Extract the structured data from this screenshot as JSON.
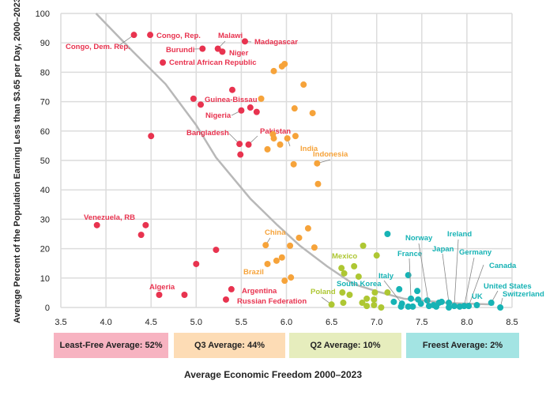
{
  "chart_data": {
    "type": "scatter",
    "title": "",
    "xlabel": "Average Economic Freedom 2000–2023",
    "ylabel": "Average Percent of the Population Earning Less than $3.65 per Day, 2000–2023",
    "xlim": [
      3.5,
      8.5
    ],
    "ylim": [
      0,
      100
    ],
    "xticks": [
      "3.5",
      "4.0",
      "4.5",
      "5.0",
      "5.5",
      "6.0",
      "6.5",
      "7.0",
      "7.5",
      "8.0",
      "8.5"
    ],
    "yticks": [
      "0",
      "10",
      "20",
      "30",
      "40",
      "50",
      "60",
      "70",
      "80",
      "90",
      "100"
    ],
    "grid": true,
    "colors": {
      "least_free": "#e8334f",
      "q3": "#f6a33a",
      "q2": "#aec733",
      "freest": "#17b3b5",
      "trend": "#b8b8b8"
    },
    "trend_line": [
      [
        3.89,
        100
      ],
      [
        4.3,
        87
      ],
      [
        4.66,
        76
      ],
      [
        5.0,
        62
      ],
      [
        5.22,
        51
      ],
      [
        5.6,
        37
      ],
      [
        5.9,
        28
      ],
      [
        6.15,
        21
      ],
      [
        6.45,
        14
      ],
      [
        6.74,
        8
      ],
      [
        7.0,
        5.5
      ],
      [
        7.3,
        3
      ],
      [
        7.8,
        1.5
      ],
      [
        8.3,
        1
      ]
    ],
    "series": [
      {
        "name": "Least-Free",
        "color_key": "least_free",
        "points": [
          {
            "x": 4.31,
            "y": 92.7,
            "label": "Congo, Dem. Rep."
          },
          {
            "x": 4.49,
            "y": 92.7,
            "label": "Congo, Rep."
          },
          {
            "x": 5.07,
            "y": 88,
            "label": "Burundi"
          },
          {
            "x": 5.24,
            "y": 88,
            "label": "Malawi"
          },
          {
            "x": 5.29,
            "y": 87,
            "label": "Niger"
          },
          {
            "x": 5.54,
            "y": 90.5,
            "label": "Madagascar"
          },
          {
            "x": 4.63,
            "y": 83.3,
            "label": "Central African Republic"
          },
          {
            "x": 5.4,
            "y": 74
          },
          {
            "x": 4.97,
            "y": 71,
            "label": "Guinea-Bissau"
          },
          {
            "x": 5.05,
            "y": 69
          },
          {
            "x": 5.5,
            "y": 67,
            "label": "Nigeria"
          },
          {
            "x": 5.6,
            "y": 68
          },
          {
            "x": 5.67,
            "y": 66.5
          },
          {
            "x": 4.5,
            "y": 58.3
          },
          {
            "x": 5.48,
            "y": 55.6,
            "label": "Bangladesh"
          },
          {
            "x": 5.58,
            "y": 55.4,
            "label": "Pakistan"
          },
          {
            "x": 5.49,
            "y": 52
          },
          {
            "x": 3.9,
            "y": 28,
            "label": "Venezuela, RB"
          },
          {
            "x": 4.44,
            "y": 28
          },
          {
            "x": 4.39,
            "y": 24.7
          },
          {
            "x": 5.22,
            "y": 19.6
          },
          {
            "x": 5.0,
            "y": 14.8
          },
          {
            "x": 4.59,
            "y": 4.3,
            "label": "Algeria"
          },
          {
            "x": 4.87,
            "y": 4.3
          },
          {
            "x": 5.39,
            "y": 6.2,
            "label": "Argentina"
          },
          {
            "x": 5.33,
            "y": 2.7,
            "label": "Russian Federation"
          }
        ]
      },
      {
        "name": "Q3",
        "color_key": "q3",
        "points": [
          {
            "x": 5.86,
            "y": 80.4
          },
          {
            "x": 5.95,
            "y": 82
          },
          {
            "x": 5.98,
            "y": 82.8
          },
          {
            "x": 6.19,
            "y": 75.8
          },
          {
            "x": 5.72,
            "y": 71
          },
          {
            "x": 6.09,
            "y": 67.7
          },
          {
            "x": 6.29,
            "y": 66.1
          },
          {
            "x": 5.85,
            "y": 58.9
          },
          {
            "x": 5.86,
            "y": 57.5
          },
          {
            "x": 5.93,
            "y": 55.4
          },
          {
            "x": 5.79,
            "y": 53.8
          },
          {
            "x": 6.01,
            "y": 57.5,
            "label": "India"
          },
          {
            "x": 6.1,
            "y": 58.3
          },
          {
            "x": 6.08,
            "y": 48.7
          },
          {
            "x": 6.34,
            "y": 49,
            "label": "Indonesia"
          },
          {
            "x": 6.35,
            "y": 42
          },
          {
            "x": 5.77,
            "y": 21.2,
            "label": "China"
          },
          {
            "x": 6.04,
            "y": 21
          },
          {
            "x": 6.14,
            "y": 23.7
          },
          {
            "x": 6.24,
            "y": 26.9
          },
          {
            "x": 6.31,
            "y": 20.4
          },
          {
            "x": 5.79,
            "y": 14.8,
            "label": "Brazil"
          },
          {
            "x": 5.89,
            "y": 15.9
          },
          {
            "x": 5.95,
            "y": 17
          },
          {
            "x": 5.98,
            "y": 9.1
          },
          {
            "x": 6.05,
            "y": 10.2
          }
        ]
      },
      {
        "name": "Q2",
        "color_key": "q2",
        "points": [
          {
            "x": 6.85,
            "y": 21
          },
          {
            "x": 7.0,
            "y": 17.7
          },
          {
            "x": 6.61,
            "y": 13.4,
            "label": "Mexico"
          },
          {
            "x": 6.64,
            "y": 11.6
          },
          {
            "x": 6.75,
            "y": 14
          },
          {
            "x": 6.8,
            "y": 10.5
          },
          {
            "x": 6.62,
            "y": 5.1
          },
          {
            "x": 6.7,
            "y": 4.3
          },
          {
            "x": 6.98,
            "y": 5.1
          },
          {
            "x": 7.12,
            "y": 5.1
          },
          {
            "x": 6.89,
            "y": 3
          },
          {
            "x": 6.97,
            "y": 2.7
          },
          {
            "x": 6.84,
            "y": 1.6
          },
          {
            "x": 6.63,
            "y": 1.6
          },
          {
            "x": 6.5,
            "y": 1,
            "label": "Poland"
          },
          {
            "x": 6.89,
            "y": 0.5
          },
          {
            "x": 6.97,
            "y": 0.8
          },
          {
            "x": 7.05,
            "y": 0
          }
        ]
      },
      {
        "name": "Freest",
        "color_key": "freest",
        "points": [
          {
            "x": 7.12,
            "y": 25
          },
          {
            "x": 7.35,
            "y": 11
          },
          {
            "x": 7.25,
            "y": 6.2
          },
          {
            "x": 7.45,
            "y": 5.6
          },
          {
            "x": 7.38,
            "y": 3,
            "label": "France"
          },
          {
            "x": 7.46,
            "y": 2.7
          },
          {
            "x": 7.56,
            "y": 2.4
          },
          {
            "x": 7.19,
            "y": 1.9,
            "label": "South Korea"
          },
          {
            "x": 7.49,
            "y": 1.3
          },
          {
            "x": 7.28,
            "y": 1.3,
            "label": "Italy"
          },
          {
            "x": 7.27,
            "y": 0.3
          },
          {
            "x": 7.35,
            "y": 0.3
          },
          {
            "x": 7.4,
            "y": 0.3
          },
          {
            "x": 7.58,
            "y": 0.5,
            "label": "Norway"
          },
          {
            "x": 7.63,
            "y": 0.8
          },
          {
            "x": 7.66,
            "y": 0.3
          },
          {
            "x": 7.69,
            "y": 1.6
          },
          {
            "x": 7.72,
            "y": 1.9
          },
          {
            "x": 7.8,
            "y": 1.6,
            "label": "Japan"
          },
          {
            "x": 7.8,
            "y": 0
          },
          {
            "x": 7.86,
            "y": 0.5,
            "label": "Ireland"
          },
          {
            "x": 7.92,
            "y": 0.3
          },
          {
            "x": 7.97,
            "y": 0.5,
            "label": "Germany"
          },
          {
            "x": 8.02,
            "y": 0.5,
            "label": "Canada"
          },
          {
            "x": 8.11,
            "y": 0.8,
            "label": "UK"
          },
          {
            "x": 8.27,
            "y": 1.6,
            "label": "United States"
          },
          {
            "x": 8.37,
            "y": 0,
            "label": "Switzerland"
          }
        ]
      }
    ],
    "bands": [
      {
        "label": "Least-Free Average: 52%",
        "color": "#f7b3c1"
      },
      {
        "label": "Q3 Average: 44%",
        "color": "#fddcb5"
      },
      {
        "label": "Q2 Average: 10%",
        "color": "#e6edbd"
      },
      {
        "label": "Freest Average: 2%",
        "color": "#a3e4e3"
      }
    ]
  }
}
